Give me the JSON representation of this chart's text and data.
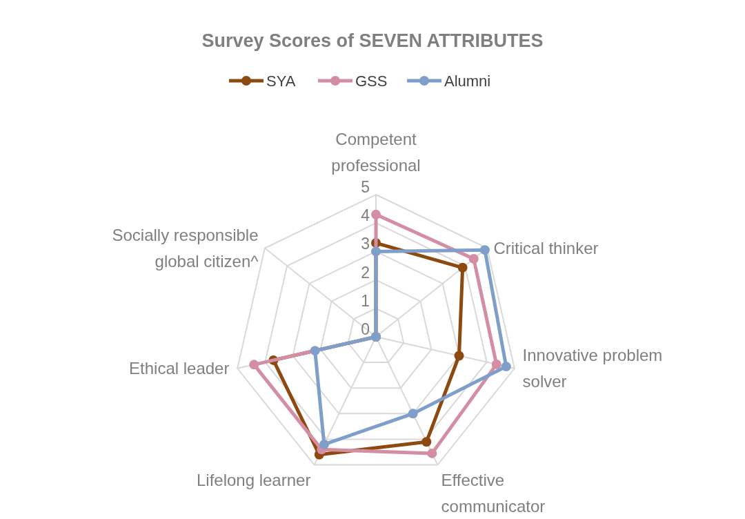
{
  "chart_data": {
    "type": "radar",
    "title": "Survey Scores of SEVEN ATTRIBUTES",
    "categories": [
      "Competent professional",
      "Critical thinker",
      "Innovative problem solver",
      "Effective communicator",
      "Lifelong learner",
      "Ethical leader",
      "Socially responsible global citizen^"
    ],
    "series": [
      {
        "name": "SYA",
        "color": "#8c4a10",
        "values": [
          3.3,
          3.9,
          3.0,
          4.1,
          4.6,
          3.7,
          0
        ]
      },
      {
        "name": "GSS",
        "color": "#d48ea4",
        "values": [
          4.3,
          4.4,
          4.35,
          4.55,
          4.4,
          4.4,
          0
        ]
      },
      {
        "name": "Alumni",
        "color": "#7f9fca",
        "values": [
          3.0,
          4.9,
          4.7,
          3.0,
          4.2,
          2.2,
          0
        ]
      }
    ],
    "ylim": [
      0,
      5
    ],
    "yticks": [
      0,
      1,
      2,
      3,
      4,
      5
    ],
    "grid": true,
    "legend": "top",
    "marker": "circle",
    "line_style": "solid"
  }
}
